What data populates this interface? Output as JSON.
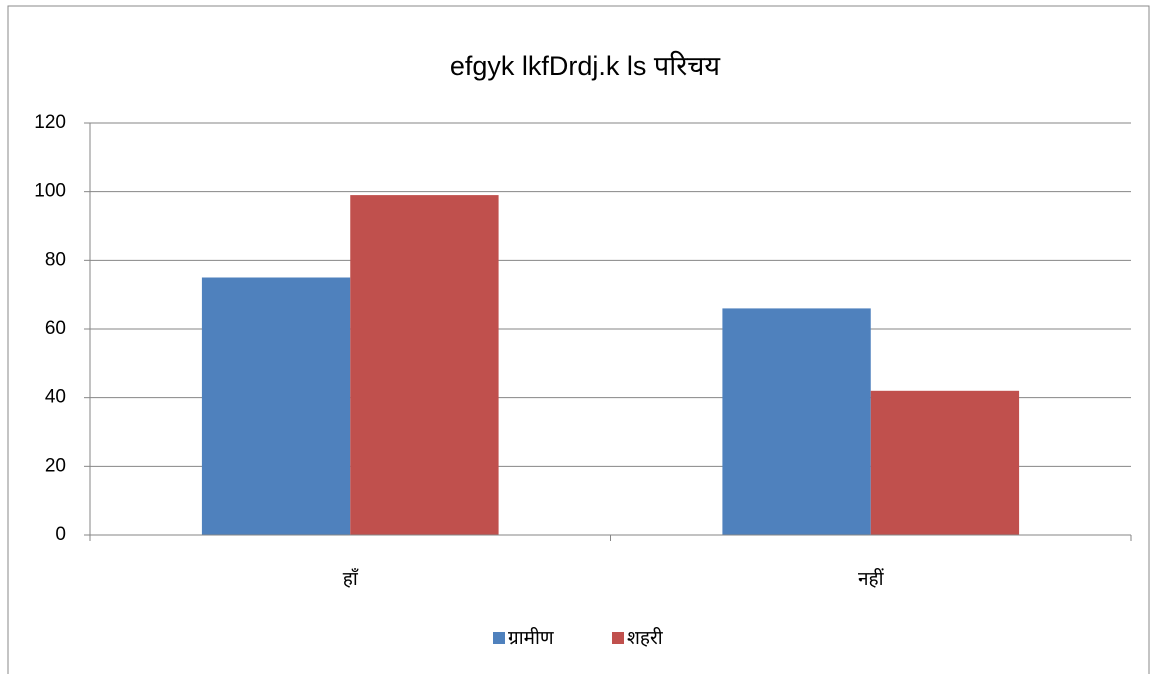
{
  "chart_data": {
    "type": "bar",
    "title": "efgyk lkfDrdj.k ls परिचय",
    "categories": [
      "हाँ",
      "नहीं"
    ],
    "series": [
      {
        "name": "ग्रामीण",
        "color": "#4f81bd",
        "values": [
          75,
          66
        ]
      },
      {
        "name": "शहरी",
        "color": "#c0504d",
        "values": [
          99,
          42
        ]
      }
    ],
    "ylim": [
      0,
      120
    ],
    "yticks": [
      0,
      20,
      40,
      60,
      80,
      100,
      120
    ],
    "grid": true,
    "legend": "bottom"
  }
}
